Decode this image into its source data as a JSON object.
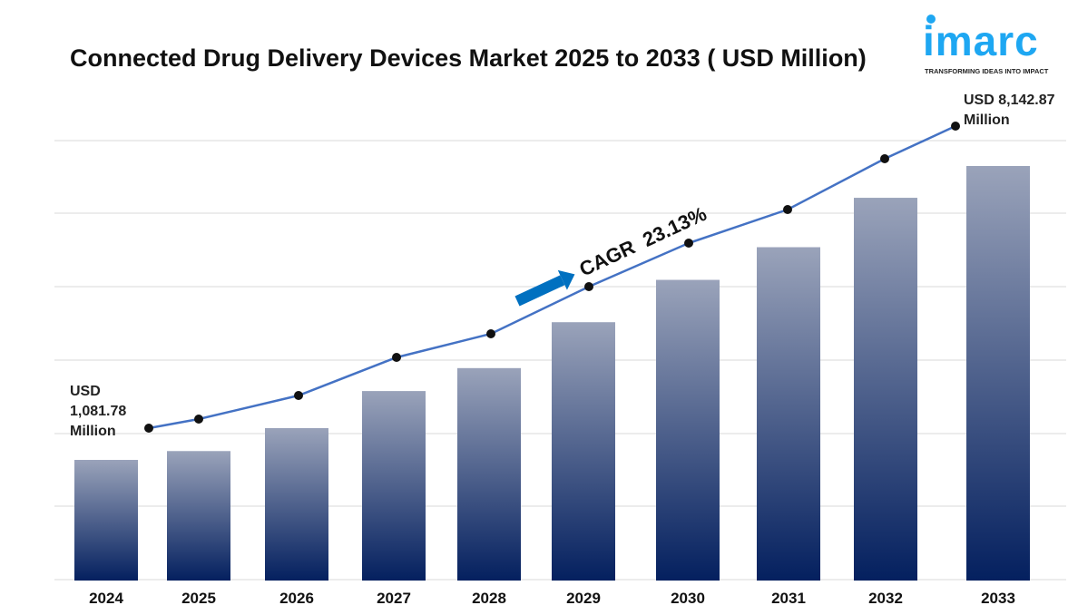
{
  "chart_data": {
    "type": "bar",
    "title": "Connected Drug Delivery Devices Market 2025 to 2033 ( USD Million)",
    "categories": [
      "2024",
      "2025",
      "2026",
      "2027",
      "2028",
      "2029",
      "2030",
      "2031",
      "2032",
      "2033"
    ],
    "series": [
      {
        "values": [
          1081.78,
          1294,
          1845,
          2736,
          3287,
          4390,
          5407,
          6192,
          7379,
          8142.87
        ]
      }
    ],
    "overlay": "line with markers",
    "grid": "horizontal",
    "annotations": {
      "start_usd": "USD",
      "start_value": "1,081.78",
      "start_unit": "Million",
      "end_label": "USD 8,142.87",
      "end_unit": "Million",
      "cagr": "CAGR  23.13%"
    },
    "colors": {
      "bar_top": "#9aa3ba",
      "bar_bottom": "#04205f",
      "line": "#4472c4",
      "marker": "#111111",
      "arrow": "#0070c0"
    }
  },
  "logo": {
    "word": "imarc",
    "tagline": "TRANSFORMING IDEAS INTO IMPACT"
  }
}
